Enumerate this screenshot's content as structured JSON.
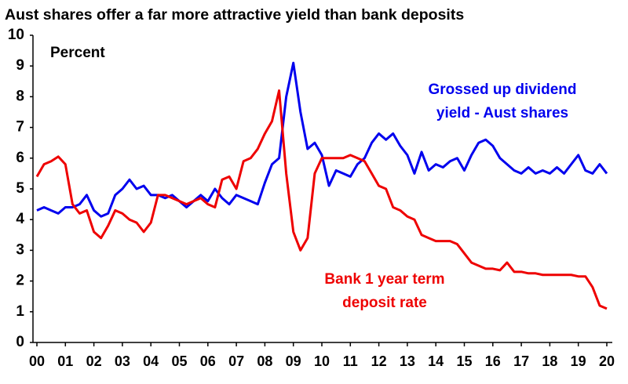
{
  "chart_data": {
    "type": "line",
    "title": "Aust shares offer a far more attractive yield than bank deposits",
    "y_label": "Percent",
    "x": [
      0,
      0.25,
      0.5,
      0.75,
      1,
      1.25,
      1.5,
      1.75,
      2,
      2.25,
      2.5,
      2.75,
      3,
      3.25,
      3.5,
      3.75,
      4,
      4.25,
      4.5,
      4.75,
      5,
      5.25,
      5.5,
      5.75,
      6,
      6.25,
      6.5,
      6.75,
      7,
      7.25,
      7.5,
      7.75,
      8,
      8.25,
      8.5,
      8.75,
      9,
      9.25,
      9.5,
      9.75,
      10,
      10.25,
      10.5,
      10.75,
      11,
      11.25,
      11.5,
      11.75,
      12,
      12.25,
      12.5,
      12.75,
      13,
      13.25,
      13.5,
      13.75,
      14,
      14.25,
      14.5,
      14.75,
      15,
      15.25,
      15.5,
      15.75,
      16,
      16.25,
      16.5,
      16.75,
      17,
      17.25,
      17.5,
      17.75,
      18,
      18.25,
      18.5,
      18.75,
      19,
      19.25,
      19.5,
      19.75,
      20
    ],
    "series": [
      {
        "name": [
          "Grossed up dividend",
          "yield - Aust shares"
        ],
        "color": "#0000ee",
        "values": [
          4.3,
          4.4,
          4.3,
          4.2,
          4.4,
          4.4,
          4.5,
          4.8,
          4.3,
          4.1,
          4.2,
          4.8,
          5.0,
          5.3,
          5.0,
          5.1,
          4.8,
          4.8,
          4.7,
          4.8,
          4.6,
          4.4,
          4.6,
          4.8,
          4.6,
          5.0,
          4.7,
          4.5,
          4.8,
          4.7,
          4.6,
          4.5,
          5.2,
          5.8,
          6.0,
          8.0,
          9.1,
          7.5,
          6.3,
          6.5,
          6.1,
          5.1,
          5.6,
          5.5,
          5.4,
          5.8,
          6.0,
          6.5,
          6.8,
          6.6,
          6.8,
          6.4,
          6.1,
          5.5,
          6.2,
          5.6,
          5.8,
          5.7,
          5.9,
          6.0,
          5.6,
          6.1,
          6.5,
          6.6,
          6.4,
          6.0,
          5.8,
          5.6,
          5.5,
          5.7,
          5.5,
          5.6,
          5.5,
          5.7,
          5.5,
          5.8,
          6.1,
          5.6,
          5.5,
          5.8,
          5.5
        ]
      },
      {
        "name": [
          "Bank 1 year term",
          "deposit rate"
        ],
        "color": "#ee0000",
        "values": [
          5.4,
          5.8,
          5.9,
          6.05,
          5.8,
          4.5,
          4.2,
          4.3,
          3.6,
          3.4,
          3.8,
          4.3,
          4.2,
          4.0,
          3.9,
          3.6,
          3.9,
          4.8,
          4.8,
          4.7,
          4.6,
          4.5,
          4.6,
          4.7,
          4.5,
          4.4,
          5.3,
          5.4,
          5.0,
          5.9,
          6.0,
          6.3,
          6.8,
          7.2,
          8.2,
          5.5,
          3.6,
          3.0,
          3.4,
          5.5,
          6.0,
          6.0,
          6.0,
          6.0,
          6.1,
          6.0,
          5.9,
          5.5,
          5.1,
          5.0,
          4.4,
          4.3,
          4.1,
          4.0,
          3.5,
          3.4,
          3.3,
          3.3,
          3.3,
          3.2,
          2.9,
          2.6,
          2.5,
          2.4,
          2.4,
          2.35,
          2.6,
          2.3,
          2.3,
          2.25,
          2.25,
          2.2,
          2.2,
          2.2,
          2.2,
          2.2,
          2.15,
          2.15,
          1.8,
          1.2,
          1.1
        ]
      }
    ],
    "xlim": [
      0,
      20
    ],
    "xticks": [
      {
        "value": 0,
        "label": "00"
      },
      {
        "value": 1,
        "label": "01"
      },
      {
        "value": 2,
        "label": "02"
      },
      {
        "value": 3,
        "label": "03"
      },
      {
        "value": 4,
        "label": "04"
      },
      {
        "value": 5,
        "label": "05"
      },
      {
        "value": 6,
        "label": "06"
      },
      {
        "value": 7,
        "label": "07"
      },
      {
        "value": 8,
        "label": "08"
      },
      {
        "value": 9,
        "label": "09"
      },
      10,
      11,
      12,
      13,
      14,
      15,
      16,
      17,
      18,
      19,
      20
    ],
    "ylim": [
      0,
      10
    ],
    "yticks": [
      0,
      1,
      2,
      3,
      4,
      5,
      6,
      7,
      8,
      9,
      10
    ],
    "grid": false
  }
}
